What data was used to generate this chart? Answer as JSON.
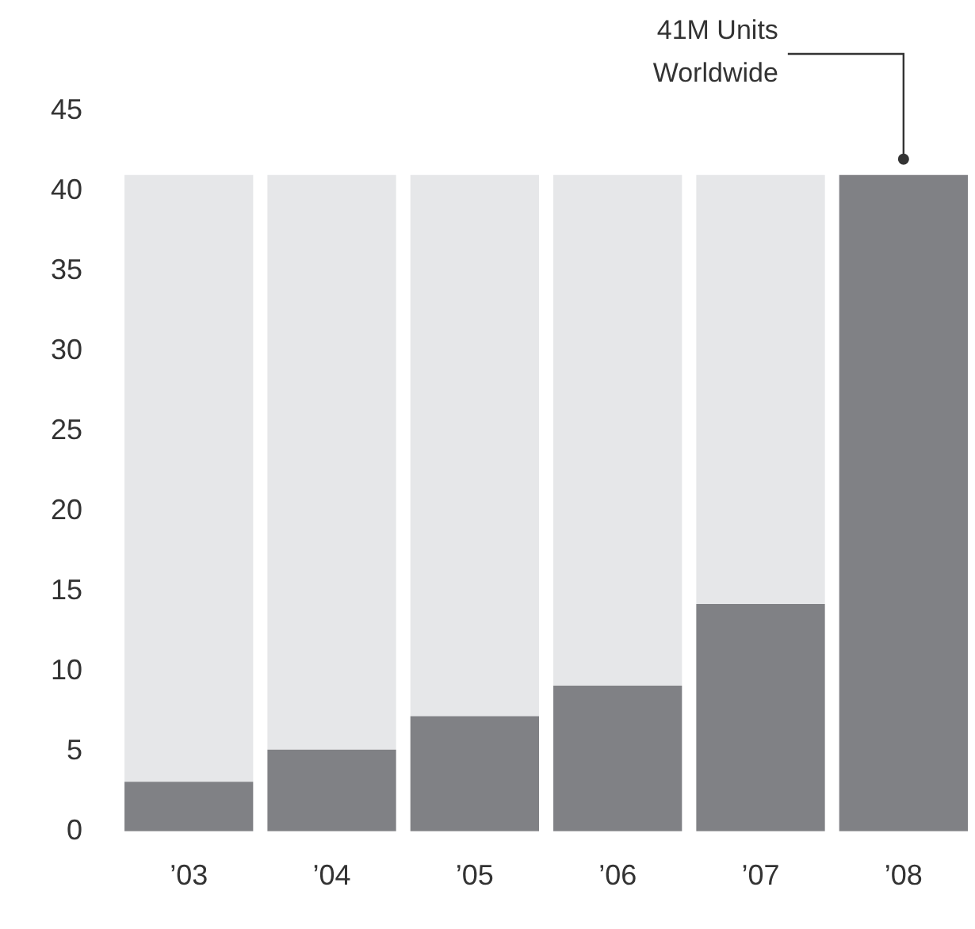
{
  "chart_data": {
    "type": "bar",
    "stacked": true,
    "categories": [
      "’03",
      "’04",
      "’05",
      "’06",
      "’07",
      "’08"
    ],
    "series": [
      {
        "color": "#808185",
        "values": [
          3.1,
          5.1,
          7.2,
          9.1,
          14.2,
          41
        ]
      },
      {
        "color": "#e6e7e9",
        "values": [
          37.9,
          35.9,
          33.8,
          31.9,
          26.8,
          0
        ]
      }
    ],
    "ylim": [
      0,
      45
    ],
    "yticks": [
      0,
      5,
      10,
      15,
      20,
      25,
      30,
      35,
      40,
      45
    ],
    "grid": false,
    "legend": false,
    "annotations": [
      {
        "text": "41M Units\nWorldwide",
        "x": "’08",
        "y": 41
      }
    ]
  }
}
